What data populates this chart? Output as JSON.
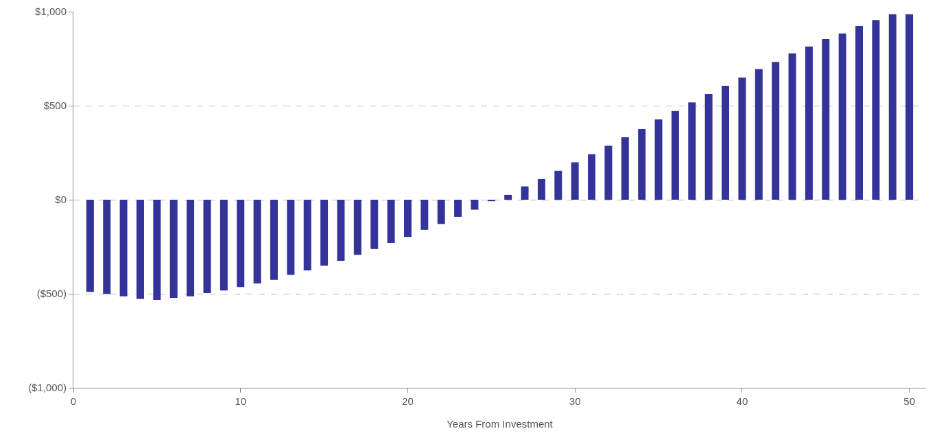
{
  "chart_data": {
    "type": "bar",
    "xlabel": "Years From Investment",
    "x": [
      1,
      2,
      3,
      4,
      5,
      6,
      7,
      8,
      9,
      10,
      11,
      12,
      13,
      14,
      15,
      16,
      17,
      18,
      19,
      20,
      21,
      22,
      23,
      24,
      25,
      26,
      27,
      28,
      29,
      30,
      31,
      32,
      33,
      34,
      35,
      36,
      37,
      38,
      39,
      40,
      41,
      42,
      43,
      44,
      45,
      46,
      47,
      48,
      49,
      50
    ],
    "values": [
      -490,
      -501,
      -514,
      -527,
      -533,
      -522,
      -514,
      -496,
      -483,
      -464,
      -445,
      -426,
      -400,
      -376,
      -350,
      -325,
      -293,
      -262,
      -230,
      -198,
      -160,
      -129,
      -91,
      -53,
      -8,
      26,
      71,
      110,
      154,
      199,
      242,
      287,
      332,
      376,
      427,
      472,
      517,
      562,
      606,
      650,
      694,
      733,
      778,
      815,
      854,
      884,
      923,
      955,
      986,
      986
    ],
    "color": "#333399",
    "xlim": [
      0,
      51
    ],
    "xticks": [
      0,
      10,
      20,
      30,
      40,
      50
    ],
    "ylim": [
      -1000,
      1000
    ],
    "yticks": [
      {
        "value": -1000,
        "label": "($1,000)"
      },
      {
        "value": -500,
        "label": "($500)"
      },
      {
        "value": 0,
        "label": "$0"
      },
      {
        "value": 500,
        "label": "$500"
      },
      {
        "value": 1000,
        "label": "$1,000"
      }
    ],
    "grid": "y"
  }
}
